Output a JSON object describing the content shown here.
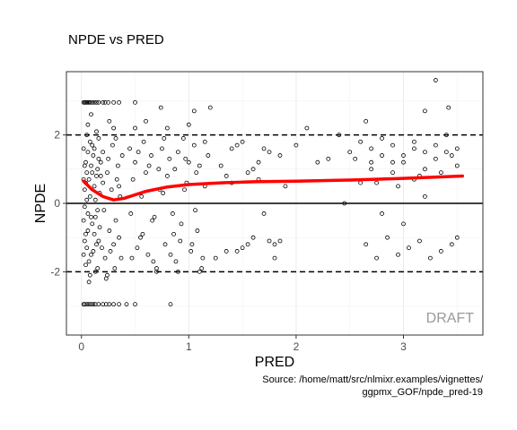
{
  "chart_data": {
    "type": "scatter",
    "title": "NPDE vs PRED",
    "xlabel": "PRED",
    "ylabel": "NPDE",
    "xlim": [
      -0.14,
      3.74
    ],
    "ylim": [
      -3.85,
      3.85
    ],
    "x_ticks": [
      0,
      1,
      2,
      3
    ],
    "y_ticks": [
      -2,
      0,
      2
    ],
    "x_tick_labels": [
      "0",
      "1",
      "2",
      "3"
    ],
    "y_tick_labels": [
      "-2",
      "0",
      "2"
    ],
    "reference_lines": [
      {
        "y": 0,
        "style": "solid"
      },
      {
        "y": 2,
        "style": "dashed"
      },
      {
        "y": -2,
        "style": "dashed"
      }
    ],
    "points": [
      [
        0.02,
        2.95
      ],
      [
        0.03,
        2.95
      ],
      [
        0.04,
        2.95
      ],
      [
        0.05,
        2.95
      ],
      [
        0.06,
        2.95
      ],
      [
        0.07,
        2.95
      ],
      [
        0.08,
        2.95
      ],
      [
        0.1,
        2.95
      ],
      [
        0.12,
        2.95
      ],
      [
        0.14,
        2.95
      ],
      [
        0.16,
        2.95
      ],
      [
        0.2,
        2.95
      ],
      [
        0.22,
        2.95
      ],
      [
        0.25,
        2.95
      ],
      [
        0.3,
        2.95
      ],
      [
        0.35,
        2.95
      ],
      [
        0.5,
        2.95
      ],
      [
        0.02,
        -2.95
      ],
      [
        0.03,
        -2.95
      ],
      [
        0.05,
        -2.95
      ],
      [
        0.07,
        -2.95
      ],
      [
        0.09,
        -2.95
      ],
      [
        0.11,
        -2.95
      ],
      [
        0.13,
        -2.95
      ],
      [
        0.16,
        -2.95
      ],
      [
        0.2,
        -2.95
      ],
      [
        0.23,
        -2.95
      ],
      [
        0.26,
        -2.95
      ],
      [
        0.3,
        -2.95
      ],
      [
        0.35,
        -2.95
      ],
      [
        0.42,
        -2.95
      ],
      [
        0.5,
        -2.95
      ],
      [
        0.83,
        -2.95
      ],
      [
        0.04,
        1.2
      ],
      [
        0.05,
        0.9
      ],
      [
        0.06,
        1.5
      ],
      [
        0.03,
        0.4
      ],
      [
        0.07,
        0.7
      ],
      [
        0.08,
        1.8
      ],
      [
        0.09,
        1.1
      ],
      [
        0.05,
        0.1
      ],
      [
        0.06,
        -0.3
      ],
      [
        0.04,
        -0.9
      ],
      [
        0.05,
        -1.3
      ],
      [
        0.07,
        -1.7
      ],
      [
        0.08,
        -2.1
      ],
      [
        0.09,
        -1.5
      ],
      [
        0.1,
        -0.6
      ],
      [
        0.03,
        -0.1
      ],
      [
        0.06,
        2.3
      ],
      [
        0.09,
        2.6
      ],
      [
        0.1,
        0.9
      ],
      [
        0.11,
        1.4
      ],
      [
        0.12,
        0.5
      ],
      [
        0.13,
        -0.4
      ],
      [
        0.14,
        -1.2
      ],
      [
        0.15,
        -1.9
      ],
      [
        0.16,
        -1.1
      ],
      [
        0.17,
        -0.7
      ],
      [
        0.18,
        0.8
      ],
      [
        0.12,
        1.6
      ],
      [
        0.14,
        2.1
      ],
      [
        0.16,
        1.9
      ],
      [
        0.18,
        1.2
      ],
      [
        0.2,
        0.6
      ],
      [
        0.21,
        -0.2
      ],
      [
        0.22,
        -1.6
      ],
      [
        0.23,
        -2.2
      ],
      [
        0.19,
        -1.3
      ],
      [
        0.17,
        0.3
      ],
      [
        0.13,
        -2.0
      ],
      [
        0.15,
        1.0
      ],
      [
        0.2,
        1.5
      ],
      [
        0.24,
        0.9
      ],
      [
        0.25,
        1.3
      ],
      [
        0.26,
        -0.8
      ],
      [
        0.27,
        -1.4
      ],
      [
        0.28,
        0.4
      ],
      [
        0.29,
        1.7
      ],
      [
        0.3,
        2.2
      ],
      [
        0.31,
        -1.9
      ],
      [
        0.32,
        -0.5
      ],
      [
        0.33,
        0.7
      ],
      [
        0.34,
        1.1
      ],
      [
        0.35,
        -1.0
      ],
      [
        0.36,
        0.2
      ],
      [
        0.37,
        -1.6
      ],
      [
        0.38,
        1.4
      ],
      [
        0.24,
        -2.1
      ],
      [
        0.26,
        2.4
      ],
      [
        0.3,
        -1.2
      ],
      [
        0.32,
        1.9
      ],
      [
        0.35,
        0.5
      ],
      [
        0.02,
        0.7
      ],
      [
        0.02,
        -0.5
      ],
      [
        0.02,
        1.6
      ],
      [
        0.02,
        -1.5
      ],
      [
        0.03,
        1.1
      ],
      [
        0.03,
        -1.1
      ],
      [
        0.04,
        0.6
      ],
      [
        0.04,
        -1.8
      ],
      [
        0.05,
        2.0
      ],
      [
        0.06,
        -0.8
      ],
      [
        0.07,
        -2.3
      ],
      [
        0.08,
        0.2
      ],
      [
        0.09,
        -0.4
      ],
      [
        0.1,
        1.7
      ],
      [
        0.11,
        -1.4
      ],
      [
        0.12,
        -0.9
      ],
      [
        0.13,
        0.1
      ],
      [
        0.14,
        0.8
      ],
      [
        0.15,
        -0.2
      ],
      [
        0.16,
        1.3
      ],
      [
        0.45,
        1.6
      ],
      [
        0.48,
        0.7
      ],
      [
        0.5,
        1.2
      ],
      [
        0.52,
        -1.3
      ],
      [
        0.55,
        -1.0
      ],
      [
        0.58,
        1.8
      ],
      [
        0.6,
        0.9
      ],
      [
        0.62,
        -1.5
      ],
      [
        0.65,
        1.4
      ],
      [
        0.68,
        -0.4
      ],
      [
        0.7,
        -1.9
      ],
      [
        0.72,
        1.0
      ],
      [
        0.75,
        1.6
      ],
      [
        0.78,
        -1.2
      ],
      [
        0.8,
        0.8
      ],
      [
        0.82,
        1.3
      ],
      [
        0.85,
        -0.3
      ],
      [
        0.88,
        -1.7
      ],
      [
        0.9,
        1.5
      ],
      [
        0.92,
        -1.1
      ],
      [
        0.95,
        1.9
      ],
      [
        0.98,
        0.6
      ],
      [
        1.0,
        1.2
      ],
      [
        1.02,
        -1.4
      ],
      [
        1.05,
        1.7
      ],
      [
        1.08,
        -0.8
      ],
      [
        1.1,
        1.1
      ],
      [
        1.12,
        -1.9
      ],
      [
        1.15,
        0.5
      ],
      [
        1.18,
        1.4
      ],
      [
        0.47,
        -1.6
      ],
      [
        0.53,
        1.5
      ],
      [
        0.57,
        -0.9
      ],
      [
        0.63,
        1.1
      ],
      [
        0.67,
        -1.7
      ],
      [
        0.73,
        0.4
      ],
      [
        0.77,
        1.9
      ],
      [
        0.83,
        -1.5
      ],
      [
        0.87,
        1.0
      ],
      [
        0.93,
        -0.6
      ],
      [
        0.97,
        1.3
      ],
      [
        1.03,
        -1.2
      ],
      [
        1.07,
        0.9
      ],
      [
        1.13,
        -1.6
      ],
      [
        0.5,
        2.2
      ],
      [
        0.6,
        2.4
      ],
      [
        0.7,
        -2.0
      ],
      [
        0.8,
        2.2
      ],
      [
        0.9,
        -2.0
      ],
      [
        1.0,
        2.3
      ],
      [
        1.1,
        -2.0
      ],
      [
        0.46,
        -0.3
      ],
      [
        0.56,
        0.2
      ],
      [
        0.66,
        -0.5
      ],
      [
        0.76,
        0.3
      ],
      [
        0.86,
        -0.9
      ],
      [
        0.96,
        0.4
      ],
      [
        1.06,
        -0.2
      ],
      [
        0.74,
        2.8
      ],
      [
        1.15,
        1.8
      ],
      [
        1.3,
        1.1
      ],
      [
        1.35,
        -1.4
      ],
      [
        1.4,
        0.6
      ],
      [
        1.45,
        1.7
      ],
      [
        1.5,
        -1.3
      ],
      [
        1.55,
        0.9
      ],
      [
        1.6,
        -1.0
      ],
      [
        1.65,
        1.2
      ],
      [
        1.7,
        -0.3
      ],
      [
        1.75,
        1.5
      ],
      [
        1.8,
        -1.6
      ],
      [
        1.85,
        1.4
      ],
      [
        1.9,
        0.5
      ],
      [
        1.4,
        1.6
      ],
      [
        1.5,
        1.8
      ],
      [
        1.6,
        1.0
      ],
      [
        1.7,
        1.6
      ],
      [
        1.8,
        -1.2
      ],
      [
        1.25,
        -1.6
      ],
      [
        1.45,
        -1.4
      ],
      [
        1.55,
        -1.2
      ],
      [
        1.65,
        0.7
      ],
      [
        1.75,
        -1.1
      ],
      [
        1.85,
        -1.1
      ],
      [
        1.35,
        0.8
      ],
      [
        1.05,
        2.7
      ],
      [
        1.2,
        2.8
      ],
      [
        2.0,
        1.7
      ],
      [
        2.1,
        2.2
      ],
      [
        2.2,
        1.2
      ],
      [
        2.3,
        1.3
      ],
      [
        2.4,
        2.0
      ],
      [
        2.5,
        1.5
      ],
      [
        2.6,
        0.6
      ],
      [
        2.7,
        1.0
      ],
      [
        2.8,
        1.4
      ],
      [
        2.9,
        0.9
      ],
      [
        3.0,
        1.2
      ],
      [
        3.1,
        1.6
      ],
      [
        3.2,
        1.0
      ],
      [
        3.3,
        1.3
      ],
      [
        3.4,
        1.5
      ],
      [
        3.5,
        1.1
      ],
      [
        2.45,
        -0.0
      ],
      [
        2.65,
        -1.2
      ],
      [
        2.75,
        -1.6
      ],
      [
        2.85,
        -1.0
      ],
      [
        2.95,
        -1.5
      ],
      [
        3.05,
        -1.3
      ],
      [
        3.15,
        -1.1
      ],
      [
        3.25,
        -1.6
      ],
      [
        3.35,
        -1.4
      ],
      [
        3.45,
        -1.2
      ],
      [
        3.5,
        -1.0
      ],
      [
        2.6,
        1.8
      ],
      [
        2.7,
        1.6
      ],
      [
        2.8,
        1.9
      ],
      [
        2.9,
        1.7
      ],
      [
        3.0,
        1.4
      ],
      [
        3.1,
        1.8
      ],
      [
        3.2,
        1.5
      ],
      [
        3.3,
        1.7
      ],
      [
        3.4,
        2.0
      ],
      [
        3.5,
        1.6
      ],
      [
        2.55,
        1.3
      ],
      [
        2.75,
        0.6
      ],
      [
        2.95,
        0.5
      ],
      [
        3.15,
        0.8
      ],
      [
        3.35,
        0.9
      ],
      [
        2.65,
        2.4
      ],
      [
        3.2,
        2.7
      ],
      [
        3.3,
        3.6
      ],
      [
        3.42,
        2.8
      ],
      [
        2.8,
        -0.3
      ],
      [
        3.0,
        -0.6
      ],
      [
        3.2,
        0.2
      ],
      [
        2.7,
        1.2
      ],
      [
        2.9,
        1.2
      ],
      [
        3.1,
        0.7
      ],
      [
        3.45,
        1.4
      ]
    ],
    "smooth_line": {
      "color": "#ff0000",
      "x": [
        0.02,
        0.1,
        0.2,
        0.3,
        0.4,
        0.6,
        0.8,
        1.0,
        1.3,
        1.6,
        2.0,
        2.5,
        3.0,
        3.55
      ],
      "y": [
        0.65,
        0.4,
        0.2,
        0.1,
        0.15,
        0.35,
        0.48,
        0.55,
        0.6,
        0.63,
        0.65,
        0.68,
        0.73,
        0.8
      ]
    },
    "annotation": "DRAFT",
    "caption_lines": [
      "Source: /home/matt/src/nlmixr.examples/vignettes/",
      "ggpmx_GOF/npde_pred-19"
    ],
    "grid": true,
    "legend": "none"
  }
}
